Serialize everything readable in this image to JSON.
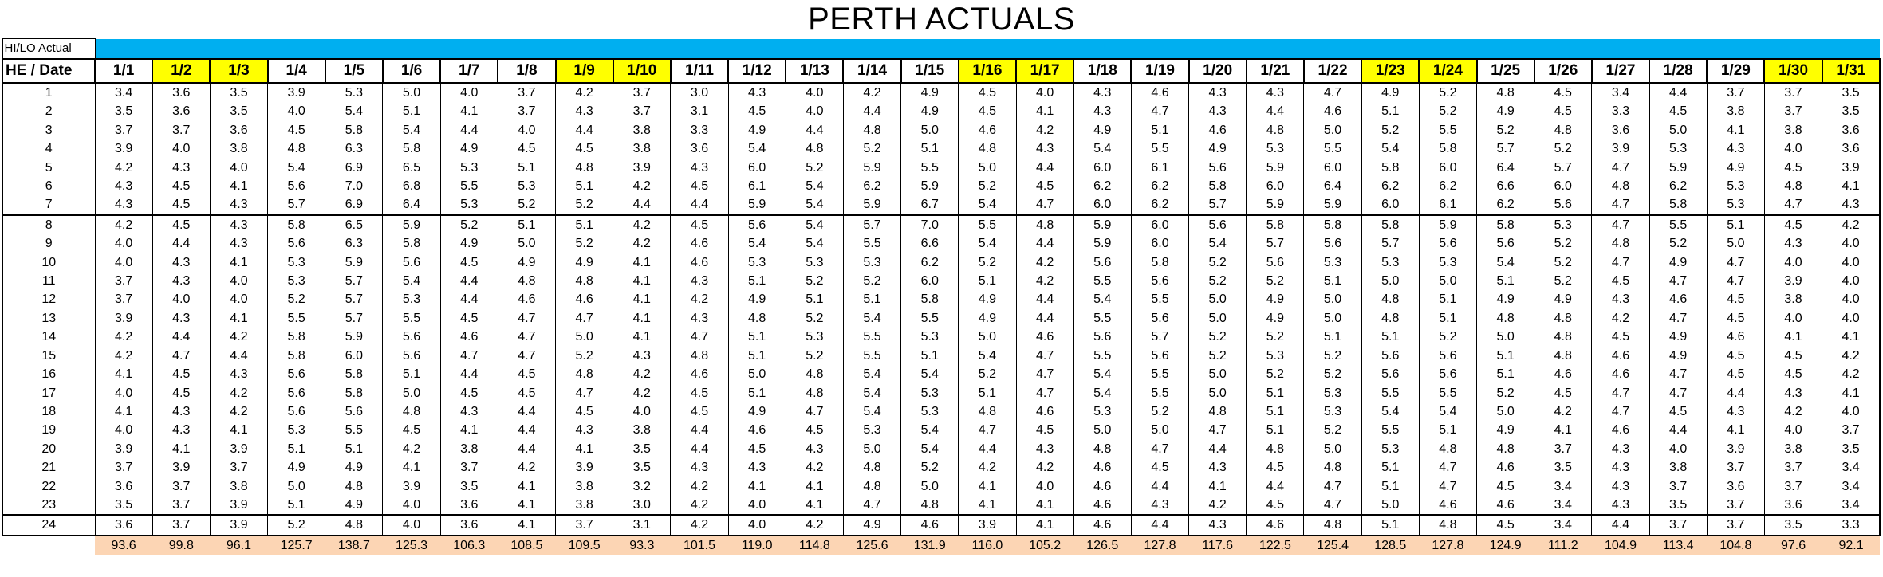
{
  "title": "PERTH ACTUALS",
  "hilo_label": "HI/LO Actual",
  "header_label": "HE / Date",
  "dates": [
    "1/1",
    "1/2",
    "1/3",
    "1/4",
    "1/5",
    "1/6",
    "1/7",
    "1/8",
    "1/9",
    "1/10",
    "1/11",
    "1/12",
    "1/13",
    "1/14",
    "1/15",
    "1/16",
    "1/17",
    "1/18",
    "1/19",
    "1/20",
    "1/21",
    "1/22",
    "1/23",
    "1/24",
    "1/25",
    "1/26",
    "1/27",
    "1/28",
    "1/29",
    "1/30",
    "1/31"
  ],
  "highlighted_dates": [
    "1/2",
    "1/3",
    "1/9",
    "1/10",
    "1/16",
    "1/17",
    "1/23",
    "1/24",
    "1/30",
    "1/31"
  ],
  "colors": {
    "bar": "#00aff0",
    "highlight": "#ffff00",
    "total": "#fcd5b4"
  },
  "rows": [
    {
      "he": "1",
      "values": [
        "3.4",
        "3.6",
        "3.5",
        "3.9",
        "5.3",
        "5.0",
        "4.0",
        "3.7",
        "4.2",
        "3.7",
        "3.0",
        "4.3",
        "4.0",
        "4.2",
        "4.9",
        "4.5",
        "4.0",
        "4.3",
        "4.6",
        "4.3",
        "4.3",
        "4.7",
        "4.9",
        "5.2",
        "4.8",
        "4.5",
        "3.4",
        "4.4",
        "3.7",
        "3.7",
        "3.5"
      ]
    },
    {
      "he": "2",
      "values": [
        "3.5",
        "3.6",
        "3.5",
        "4.0",
        "5.4",
        "5.1",
        "4.1",
        "3.7",
        "4.3",
        "3.7",
        "3.1",
        "4.5",
        "4.0",
        "4.4",
        "4.9",
        "4.5",
        "4.1",
        "4.3",
        "4.7",
        "4.3",
        "4.4",
        "4.6",
        "5.1",
        "5.2",
        "4.9",
        "4.5",
        "3.3",
        "4.5",
        "3.8",
        "3.7",
        "3.5"
      ]
    },
    {
      "he": "3",
      "values": [
        "3.7",
        "3.7",
        "3.6",
        "4.5",
        "5.8",
        "5.4",
        "4.4",
        "4.0",
        "4.4",
        "3.8",
        "3.3",
        "4.9",
        "4.4",
        "4.8",
        "5.0",
        "4.6",
        "4.2",
        "4.9",
        "5.1",
        "4.6",
        "4.8",
        "5.0",
        "5.2",
        "5.5",
        "5.2",
        "4.8",
        "3.6",
        "5.0",
        "4.1",
        "3.8",
        "3.6"
      ]
    },
    {
      "he": "4",
      "values": [
        "3.9",
        "4.0",
        "3.8",
        "4.8",
        "6.3",
        "5.8",
        "4.9",
        "4.5",
        "4.5",
        "3.8",
        "3.6",
        "5.4",
        "4.8",
        "5.2",
        "5.1",
        "4.8",
        "4.3",
        "5.4",
        "5.5",
        "4.9",
        "5.3",
        "5.5",
        "5.4",
        "5.8",
        "5.7",
        "5.2",
        "3.9",
        "5.3",
        "4.3",
        "4.0",
        "3.6"
      ]
    },
    {
      "he": "5",
      "values": [
        "4.2",
        "4.3",
        "4.0",
        "5.4",
        "6.9",
        "6.5",
        "5.3",
        "5.1",
        "4.8",
        "3.9",
        "4.3",
        "6.0",
        "5.2",
        "5.9",
        "5.5",
        "5.0",
        "4.4",
        "6.0",
        "6.1",
        "5.6",
        "5.9",
        "6.0",
        "5.8",
        "6.0",
        "6.4",
        "5.7",
        "4.7",
        "5.9",
        "4.9",
        "4.5",
        "3.9"
      ]
    },
    {
      "he": "6",
      "values": [
        "4.3",
        "4.5",
        "4.1",
        "5.6",
        "7.0",
        "6.8",
        "5.5",
        "5.3",
        "5.1",
        "4.2",
        "4.5",
        "6.1",
        "5.4",
        "6.2",
        "5.9",
        "5.2",
        "4.5",
        "6.2",
        "6.2",
        "5.8",
        "6.0",
        "6.4",
        "6.2",
        "6.2",
        "6.6",
        "6.0",
        "4.8",
        "6.2",
        "5.3",
        "4.8",
        "4.1"
      ]
    },
    {
      "he": "7",
      "values": [
        "4.3",
        "4.5",
        "4.3",
        "5.7",
        "6.9",
        "6.4",
        "5.3",
        "5.2",
        "5.2",
        "4.4",
        "4.4",
        "5.9",
        "5.4",
        "5.9",
        "6.7",
        "5.4",
        "4.7",
        "6.0",
        "6.2",
        "5.7",
        "5.9",
        "5.9",
        "6.0",
        "6.1",
        "6.2",
        "5.6",
        "4.7",
        "5.8",
        "5.3",
        "4.7",
        "4.3"
      ]
    },
    {
      "he": "8",
      "values": [
        "4.2",
        "4.5",
        "4.3",
        "5.8",
        "6.5",
        "5.9",
        "5.2",
        "5.1",
        "5.1",
        "4.2",
        "4.5",
        "5.6",
        "5.4",
        "5.7",
        "7.0",
        "5.5",
        "4.8",
        "5.9",
        "6.0",
        "5.6",
        "5.8",
        "5.8",
        "5.8",
        "5.9",
        "5.8",
        "5.3",
        "4.7",
        "5.5",
        "5.1",
        "4.5",
        "4.2"
      ]
    },
    {
      "he": "9",
      "values": [
        "4.0",
        "4.4",
        "4.3",
        "5.6",
        "6.3",
        "5.8",
        "4.9",
        "5.0",
        "5.2",
        "4.2",
        "4.6",
        "5.4",
        "5.4",
        "5.5",
        "6.6",
        "5.4",
        "4.4",
        "5.9",
        "6.0",
        "5.4",
        "5.7",
        "5.6",
        "5.7",
        "5.6",
        "5.6",
        "5.2",
        "4.8",
        "5.2",
        "5.0",
        "4.3",
        "4.0"
      ]
    },
    {
      "he": "10",
      "values": [
        "4.0",
        "4.3",
        "4.1",
        "5.3",
        "5.9",
        "5.6",
        "4.5",
        "4.9",
        "4.9",
        "4.1",
        "4.6",
        "5.3",
        "5.3",
        "5.3",
        "6.2",
        "5.2",
        "4.2",
        "5.6",
        "5.8",
        "5.2",
        "5.6",
        "5.3",
        "5.3",
        "5.3",
        "5.4",
        "5.2",
        "4.7",
        "4.9",
        "4.7",
        "4.0",
        "4.0"
      ]
    },
    {
      "he": "11",
      "values": [
        "3.7",
        "4.3",
        "4.0",
        "5.3",
        "5.7",
        "5.4",
        "4.4",
        "4.8",
        "4.8",
        "4.1",
        "4.3",
        "5.1",
        "5.2",
        "5.2",
        "6.0",
        "5.1",
        "4.2",
        "5.5",
        "5.6",
        "5.2",
        "5.2",
        "5.1",
        "5.0",
        "5.0",
        "5.1",
        "5.2",
        "4.5",
        "4.7",
        "4.7",
        "3.9",
        "4.0"
      ]
    },
    {
      "he": "12",
      "values": [
        "3.7",
        "4.0",
        "4.0",
        "5.2",
        "5.7",
        "5.3",
        "4.4",
        "4.6",
        "4.6",
        "4.1",
        "4.2",
        "4.9",
        "5.1",
        "5.1",
        "5.8",
        "4.9",
        "4.4",
        "5.4",
        "5.5",
        "5.0",
        "4.9",
        "5.0",
        "4.8",
        "5.1",
        "4.9",
        "4.9",
        "4.3",
        "4.6",
        "4.5",
        "3.8",
        "4.0"
      ]
    },
    {
      "he": "13",
      "values": [
        "3.9",
        "4.3",
        "4.1",
        "5.5",
        "5.7",
        "5.5",
        "4.5",
        "4.7",
        "4.7",
        "4.1",
        "4.3",
        "4.8",
        "5.2",
        "5.4",
        "5.5",
        "4.9",
        "4.4",
        "5.5",
        "5.6",
        "5.0",
        "4.9",
        "5.0",
        "4.8",
        "5.1",
        "4.8",
        "4.8",
        "4.2",
        "4.7",
        "4.5",
        "4.0",
        "4.0"
      ]
    },
    {
      "he": "14",
      "values": [
        "4.2",
        "4.4",
        "4.2",
        "5.8",
        "5.9",
        "5.6",
        "4.6",
        "4.7",
        "5.0",
        "4.1",
        "4.7",
        "5.1",
        "5.3",
        "5.5",
        "5.3",
        "5.0",
        "4.6",
        "5.6",
        "5.7",
        "5.2",
        "5.2",
        "5.1",
        "5.1",
        "5.2",
        "5.0",
        "4.8",
        "4.5",
        "4.9",
        "4.6",
        "4.1",
        "4.1"
      ]
    },
    {
      "he": "15",
      "values": [
        "4.2",
        "4.7",
        "4.4",
        "5.8",
        "6.0",
        "5.6",
        "4.7",
        "4.7",
        "5.2",
        "4.3",
        "4.8",
        "5.1",
        "5.2",
        "5.5",
        "5.1",
        "5.4",
        "4.7",
        "5.5",
        "5.6",
        "5.2",
        "5.3",
        "5.2",
        "5.6",
        "5.6",
        "5.1",
        "4.8",
        "4.6",
        "4.9",
        "4.5",
        "4.5",
        "4.2"
      ]
    },
    {
      "he": "16",
      "values": [
        "4.1",
        "4.5",
        "4.3",
        "5.6",
        "5.8",
        "5.1",
        "4.4",
        "4.5",
        "4.8",
        "4.2",
        "4.6",
        "5.0",
        "4.8",
        "5.4",
        "5.4",
        "5.2",
        "4.7",
        "5.4",
        "5.5",
        "5.0",
        "5.2",
        "5.2",
        "5.6",
        "5.6",
        "5.1",
        "4.6",
        "4.6",
        "4.7",
        "4.5",
        "4.5",
        "4.2"
      ]
    },
    {
      "he": "17",
      "values": [
        "4.0",
        "4.5",
        "4.2",
        "5.6",
        "5.8",
        "5.0",
        "4.5",
        "4.5",
        "4.7",
        "4.2",
        "4.5",
        "5.1",
        "4.8",
        "5.4",
        "5.3",
        "5.1",
        "4.7",
        "5.4",
        "5.5",
        "5.0",
        "5.1",
        "5.3",
        "5.5",
        "5.5",
        "5.2",
        "4.5",
        "4.7",
        "4.7",
        "4.4",
        "4.3",
        "4.1"
      ]
    },
    {
      "he": "18",
      "values": [
        "4.1",
        "4.3",
        "4.2",
        "5.6",
        "5.6",
        "4.8",
        "4.3",
        "4.4",
        "4.5",
        "4.0",
        "4.5",
        "4.9",
        "4.7",
        "5.4",
        "5.3",
        "4.8",
        "4.6",
        "5.3",
        "5.2",
        "4.8",
        "5.1",
        "5.3",
        "5.4",
        "5.4",
        "5.0",
        "4.2",
        "4.7",
        "4.5",
        "4.3",
        "4.2",
        "4.0"
      ]
    },
    {
      "he": "19",
      "values": [
        "4.0",
        "4.3",
        "4.1",
        "5.3",
        "5.5",
        "4.5",
        "4.1",
        "4.4",
        "4.3",
        "3.8",
        "4.4",
        "4.6",
        "4.5",
        "5.3",
        "5.4",
        "4.7",
        "4.5",
        "5.0",
        "5.0",
        "4.7",
        "5.1",
        "5.2",
        "5.5",
        "5.1",
        "4.9",
        "4.1",
        "4.6",
        "4.4",
        "4.1",
        "4.0",
        "3.7"
      ]
    },
    {
      "he": "20",
      "values": [
        "3.9",
        "4.1",
        "3.9",
        "5.1",
        "5.1",
        "4.2",
        "3.8",
        "4.4",
        "4.1",
        "3.5",
        "4.4",
        "4.5",
        "4.3",
        "5.0",
        "5.4",
        "4.4",
        "4.3",
        "4.8",
        "4.7",
        "4.4",
        "4.8",
        "5.0",
        "5.3",
        "4.8",
        "4.8",
        "3.7",
        "4.3",
        "4.0",
        "3.9",
        "3.8",
        "3.5"
      ]
    },
    {
      "he": "21",
      "values": [
        "3.7",
        "3.9",
        "3.7",
        "4.9",
        "4.9",
        "4.1",
        "3.7",
        "4.2",
        "3.9",
        "3.5",
        "4.3",
        "4.3",
        "4.2",
        "4.8",
        "5.2",
        "4.2",
        "4.2",
        "4.6",
        "4.5",
        "4.3",
        "4.5",
        "4.8",
        "5.1",
        "4.7",
        "4.6",
        "3.5",
        "4.3",
        "3.8",
        "3.7",
        "3.7",
        "3.4"
      ]
    },
    {
      "he": "22",
      "values": [
        "3.6",
        "3.7",
        "3.8",
        "5.0",
        "4.8",
        "3.9",
        "3.5",
        "4.1",
        "3.8",
        "3.2",
        "4.2",
        "4.1",
        "4.1",
        "4.8",
        "5.0",
        "4.1",
        "4.0",
        "4.6",
        "4.4",
        "4.1",
        "4.4",
        "4.7",
        "5.1",
        "4.7",
        "4.5",
        "3.4",
        "4.3",
        "3.7",
        "3.6",
        "3.7",
        "3.4"
      ]
    },
    {
      "he": "23",
      "values": [
        "3.5",
        "3.7",
        "3.9",
        "5.1",
        "4.9",
        "4.0",
        "3.6",
        "4.1",
        "3.8",
        "3.0",
        "4.2",
        "4.0",
        "4.1",
        "4.7",
        "4.8",
        "4.1",
        "4.1",
        "4.6",
        "4.3",
        "4.2",
        "4.5",
        "4.7",
        "5.0",
        "4.6",
        "4.6",
        "3.4",
        "4.3",
        "3.5",
        "3.7",
        "3.6",
        "3.4"
      ]
    },
    {
      "he": "24",
      "values": [
        "3.6",
        "3.7",
        "3.9",
        "5.2",
        "4.8",
        "4.0",
        "3.6",
        "4.1",
        "3.7",
        "3.1",
        "4.2",
        "4.0",
        "4.2",
        "4.9",
        "4.6",
        "3.9",
        "4.1",
        "4.6",
        "4.4",
        "4.3",
        "4.6",
        "4.8",
        "5.1",
        "4.8",
        "4.5",
        "3.4",
        "4.4",
        "3.7",
        "3.7",
        "3.5",
        "3.3"
      ]
    }
  ],
  "totals": [
    "93.6",
    "99.8",
    "96.1",
    "125.7",
    "138.7",
    "125.3",
    "106.3",
    "108.5",
    "109.5",
    "93.3",
    "101.5",
    "119.0",
    "114.8",
    "125.6",
    "131.9",
    "116.0",
    "105.2",
    "126.5",
    "127.8",
    "117.6",
    "122.5",
    "125.4",
    "128.5",
    "127.8",
    "124.9",
    "111.2",
    "104.9",
    "113.4",
    "104.8",
    "97.6",
    "92.1"
  ]
}
